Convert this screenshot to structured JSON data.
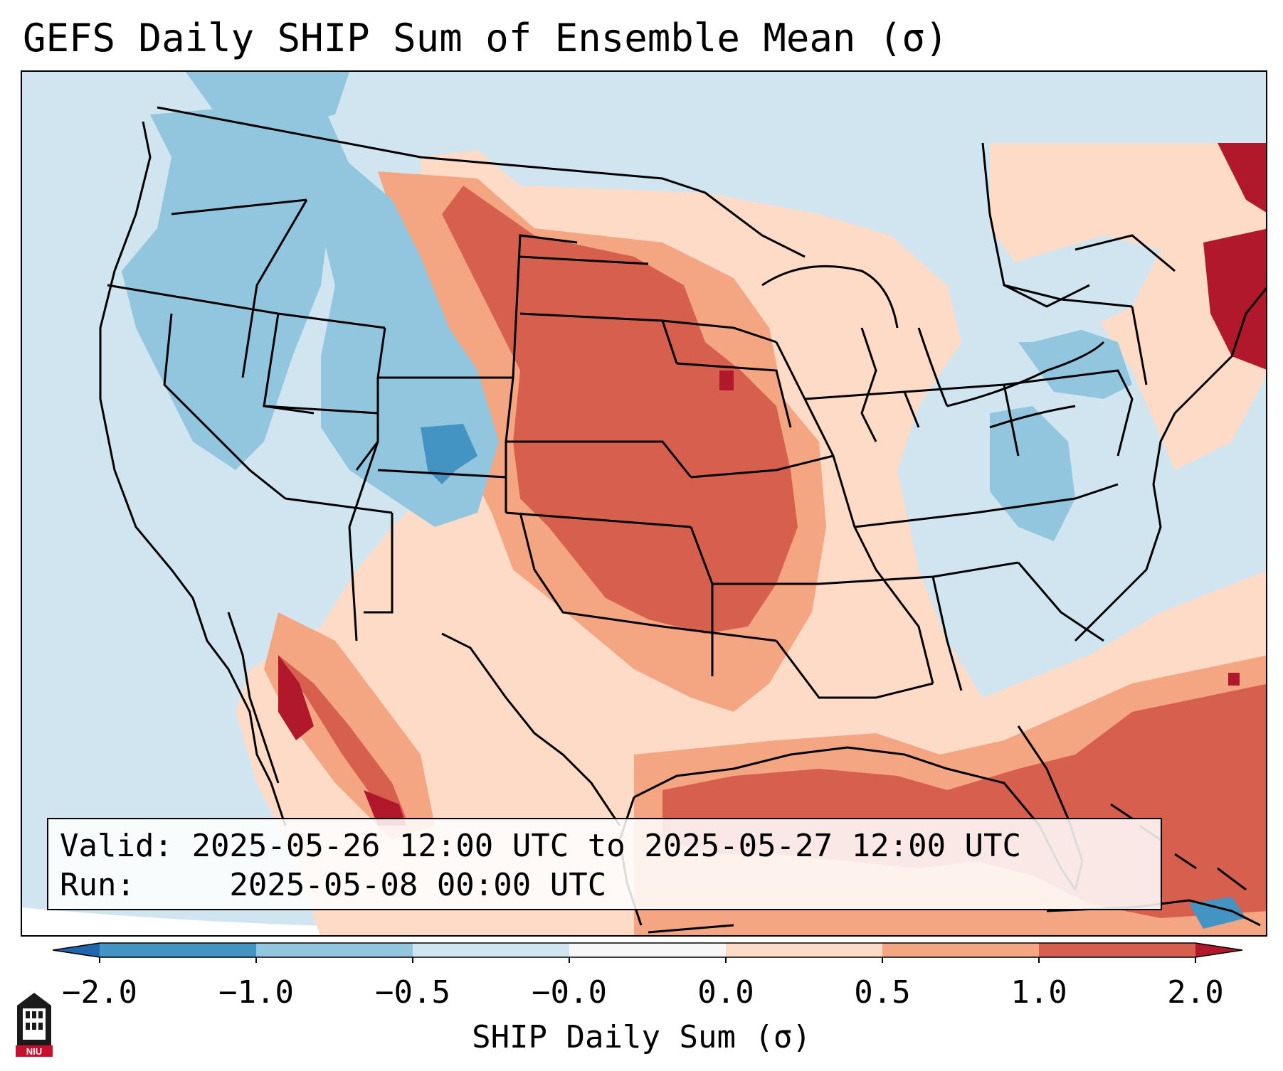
{
  "title": "GEFS Daily SHIP Sum of Ensemble Mean (σ)",
  "info": {
    "valid_label": "Valid:",
    "valid_value": "2025-05-26 12:00 UTC to 2025-05-27 12:00 UTC",
    "run_label": "Run:",
    "run_value": "2025-05-08 00:00 UTC"
  },
  "colorbar": {
    "label": "SHIP Daily Sum (σ)",
    "ticks": [
      "−2.0",
      "−1.0",
      "−0.5",
      "−0.0",
      "0.0",
      "0.5",
      "1.0",
      "2.0"
    ],
    "colors": [
      "#2166ac",
      "#4393c3",
      "#92c5de",
      "#d1e5f0",
      "#f7f7f7",
      "#fddbc7",
      "#f4a582",
      "#d6604d",
      "#b2182b"
    ]
  },
  "logo": {
    "text": "NIU"
  }
}
